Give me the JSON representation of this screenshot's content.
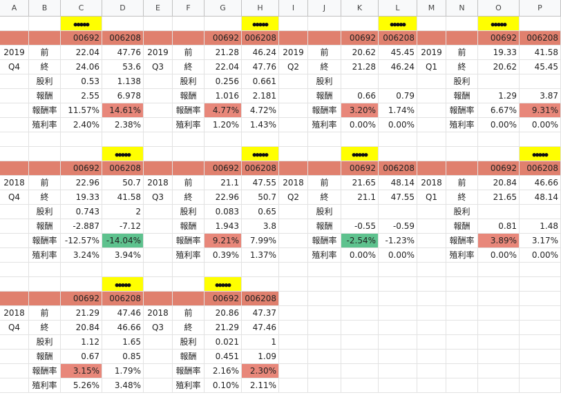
{
  "columns": [
    "A",
    "B",
    "C",
    "D",
    "E",
    "F",
    "G",
    "H",
    "I",
    "J",
    "K",
    "L",
    "M",
    "N",
    "O",
    "P"
  ],
  "badge_text": "●●●●●",
  "rows": [
    [
      "",
      "",
      "●●●●●",
      "",
      "",
      "",
      "",
      "●●●●●",
      "",
      "",
      "",
      "●●●●●",
      "",
      "",
      "●●●●●",
      ""
    ],
    [
      "",
      "",
      "00692",
      "006208",
      "",
      "",
      "00692",
      "006208",
      "",
      "",
      "00692",
      "006208",
      "",
      "",
      "00692",
      "006208"
    ],
    [
      "2019",
      "前",
      "22.04",
      "47.76",
      "2019",
      "前",
      "21.28",
      "46.24",
      "2019",
      "前",
      "20.62",
      "45.45",
      "2019",
      "前",
      "19.33",
      "41.58"
    ],
    [
      "Q4",
      "終",
      "24.06",
      "53.6",
      "Q3",
      "終",
      "22.04",
      "47.76",
      "Q2",
      "終",
      "21.28",
      "46.24",
      "Q1",
      "終",
      "20.62",
      "45.45"
    ],
    [
      "",
      "股利",
      "0.53",
      "1.138",
      "",
      "股利",
      "0.256",
      "0.661",
      "",
      "股利",
      "",
      "",
      "",
      "股利",
      "",
      ""
    ],
    [
      "",
      "報酬",
      "2.55",
      "6.978",
      "",
      "報酬",
      "1.016",
      "2.181",
      "",
      "報酬",
      "0.66",
      "0.79",
      "",
      "報酬",
      "1.29",
      "3.87"
    ],
    [
      "",
      "報酬率",
      "11.57%",
      "14.61%",
      "",
      "報酬率",
      "4.77%",
      "4.72%",
      "",
      "報酬率",
      "3.20%",
      "1.74%",
      "",
      "報酬率",
      "6.67%",
      "9.31%"
    ],
    [
      "",
      "殖利率",
      "2.40%",
      "2.38%",
      "",
      "殖利率",
      "1.20%",
      "1.43%",
      "",
      "殖利率",
      "0.00%",
      "0.00%",
      "",
      "殖利率",
      "0.00%",
      "0.00%"
    ],
    [
      "",
      "",
      "",
      "",
      "",
      "",
      "",
      "",
      "",
      "",
      "",
      "",
      "",
      "",
      "",
      ""
    ],
    [
      "",
      "",
      "",
      "●●●●●",
      "",
      "",
      "",
      "●●●●●",
      "",
      "",
      "●●●●●",
      "",
      "",
      "",
      "",
      "●●●●●"
    ],
    [
      "",
      "",
      "00692",
      "006208",
      "",
      "",
      "00692",
      "006208",
      "",
      "",
      "00692",
      "006208",
      "",
      "",
      "00692",
      "006208"
    ],
    [
      "2018",
      "前",
      "22.96",
      "50.7",
      "2018",
      "前",
      "21.1",
      "47.55",
      "2018",
      "前",
      "21.65",
      "48.14",
      "2018",
      "前",
      "20.84",
      "46.66"
    ],
    [
      "Q4",
      "終",
      "19.33",
      "41.58",
      "Q3",
      "終",
      "22.96",
      "50.7",
      "Q2",
      "終",
      "21.1",
      "47.55",
      "Q1",
      "終",
      "21.65",
      "48.14"
    ],
    [
      "",
      "股利",
      "0.743",
      "2",
      "",
      "股利",
      "0.083",
      "0.65",
      "",
      "股利",
      "",
      "",
      "",
      "股利",
      "",
      ""
    ],
    [
      "",
      "報酬",
      "-2.887",
      "-7.12",
      "",
      "報酬",
      "1.943",
      "3.8",
      "",
      "報酬",
      "-0.55",
      "-0.59",
      "",
      "報酬",
      "0.81",
      "1.48"
    ],
    [
      "",
      "報酬率",
      "-12.57%",
      "-14.04%",
      "",
      "報酬率",
      "9.21%",
      "7.99%",
      "",
      "報酬率",
      "-2.54%",
      "-1.23%",
      "",
      "報酬率",
      "3.89%",
      "3.17%"
    ],
    [
      "",
      "殖利率",
      "3.24%",
      "3.94%",
      "",
      "殖利率",
      "0.39%",
      "1.37%",
      "",
      "殖利率",
      "0.00%",
      "0.00%",
      "",
      "殖利率",
      "0.00%",
      "0.00%"
    ],
    [
      "",
      "",
      "",
      "",
      "",
      "",
      "",
      "",
      "",
      "",
      "",
      "",
      "",
      "",
      "",
      ""
    ],
    [
      "",
      "",
      "",
      "●●●●●",
      "",
      "",
      "●●●●●",
      "",
      "",
      "",
      "",
      "",
      "",
      "",
      "",
      ""
    ],
    [
      "",
      "",
      "00692",
      "006208",
      "",
      "",
      "00692",
      "006208",
      "",
      "",
      "",
      "",
      "",
      "",
      "",
      ""
    ],
    [
      "2018",
      "前",
      "21.29",
      "47.46",
      "2018",
      "前",
      "20.86",
      "47.37",
      "",
      "",
      "",
      "",
      "",
      "",
      "",
      ""
    ],
    [
      "Q4",
      "終",
      "20.84",
      "46.66",
      "Q3",
      "終",
      "21.29",
      "47.46",
      "",
      "",
      "",
      "",
      "",
      "",
      "",
      ""
    ],
    [
      "",
      "股利",
      "1.12",
      "1.65",
      "",
      "股利",
      "0.021",
      "1",
      "",
      "",
      "",
      "",
      "",
      "",
      "",
      ""
    ],
    [
      "",
      "報酬",
      "0.67",
      "0.85",
      "",
      "報酬",
      "0.451",
      "1.09",
      "",
      "",
      "",
      "",
      "",
      "",
      "",
      ""
    ],
    [
      "",
      "報酬率",
      "3.15%",
      "1.79%",
      "",
      "報酬率",
      "2.16%",
      "2.30%",
      "",
      "",
      "",
      "",
      "",
      "",
      "",
      ""
    ],
    [
      "",
      "殖利率",
      "5.26%",
      "3.48%",
      "",
      "殖利率",
      "0.10%",
      "2.11%",
      "",
      "",
      "",
      "",
      "",
      "",
      "",
      ""
    ]
  ],
  "styles": {
    "header_fill": "#e0806e",
    "yellow_fill": "#ffff00",
    "red_fill": "#e8877a",
    "green_fill": "#5ec28e"
  }
}
